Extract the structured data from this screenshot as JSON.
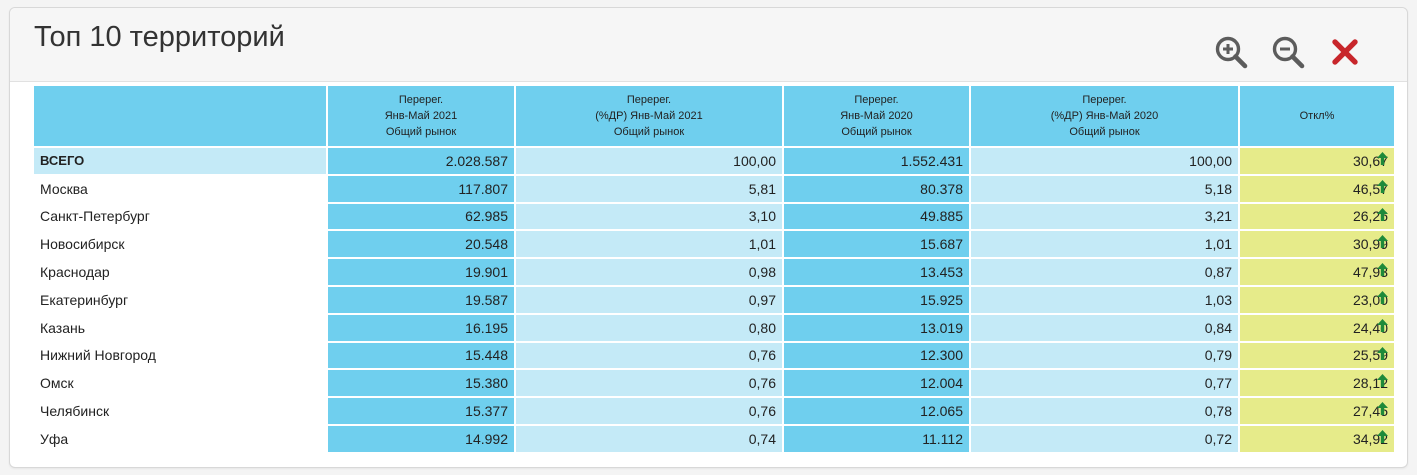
{
  "panel": {
    "title": "Топ 10 территорий",
    "tools": [
      {
        "icon": "zoom-in-icon",
        "color": "#5c5c5c"
      },
      {
        "icon": "zoom-out-icon",
        "color": "#5c5c5c"
      },
      {
        "icon": "close-icon",
        "color": "#c8262b"
      }
    ]
  },
  "table": {
    "columns": [
      {
        "lines": [
          "",
          "",
          ""
        ]
      },
      {
        "lines": [
          "Перерег.",
          "Янв-Май 2021",
          "Общий рынок"
        ]
      },
      {
        "lines": [
          "Перерег.",
          "(%ДР) Янв-Май 2021",
          "Общий рынок"
        ]
      },
      {
        "lines": [
          "Перерег.",
          "Янв-Май 2020",
          "Общий рынок"
        ]
      },
      {
        "lines": [
          "Перерег.",
          "(%ДР) Янв-Май 2020",
          "Общий рынок"
        ]
      },
      {
        "lines": [
          "",
          "Откл%",
          ""
        ]
      }
    ],
    "rows": [
      {
        "name": "ВСЕГО",
        "v2021": "2.028.587",
        "p2021": "100,00",
        "v2020": "1.552.431",
        "p2020": "100,00",
        "diff": "30,67",
        "total": true
      },
      {
        "name": "Москва",
        "v2021": "117.807",
        "p2021": "5,81",
        "v2020": "80.378",
        "p2020": "5,18",
        "diff": "46,57"
      },
      {
        "name": "Санкт-Петербург",
        "v2021": "62.985",
        "p2021": "3,10",
        "v2020": "49.885",
        "p2020": "3,21",
        "diff": "26,26"
      },
      {
        "name": "Новосибирск",
        "v2021": "20.548",
        "p2021": "1,01",
        "v2020": "15.687",
        "p2020": "1,01",
        "diff": "30,99"
      },
      {
        "name": "Краснодар",
        "v2021": "19.901",
        "p2021": "0,98",
        "v2020": "13.453",
        "p2020": "0,87",
        "diff": "47,93"
      },
      {
        "name": "Екатеринбург",
        "v2021": "19.587",
        "p2021": "0,97",
        "v2020": "15.925",
        "p2020": "1,03",
        "diff": "23,00"
      },
      {
        "name": "Казань",
        "v2021": "16.195",
        "p2021": "0,80",
        "v2020": "13.019",
        "p2020": "0,84",
        "diff": "24,40"
      },
      {
        "name": "Нижний Новгород",
        "v2021": "15.448",
        "p2021": "0,76",
        "v2020": "12.300",
        "p2020": "0,79",
        "diff": "25,59"
      },
      {
        "name": "Омск",
        "v2021": "15.380",
        "p2021": "0,76",
        "v2020": "12.004",
        "p2020": "0,77",
        "diff": "28,12"
      },
      {
        "name": "Челябинск",
        "v2021": "15.377",
        "p2021": "0,76",
        "v2020": "12.065",
        "p2020": "0,78",
        "diff": "27,45"
      },
      {
        "name": "Уфа",
        "v2021": "14.992",
        "p2021": "0,74",
        "v2020": "11.112",
        "p2020": "0,72",
        "diff": "34,92"
      }
    ],
    "trend_icon": "arrow-up-icon",
    "colors": {
      "header": "#6fcfee",
      "strong_cell": "#6fcfee",
      "light_cell": "#c4eaf7",
      "diff_cell": "#e6eb8a",
      "trend_up": "#1e8a3a"
    }
  }
}
